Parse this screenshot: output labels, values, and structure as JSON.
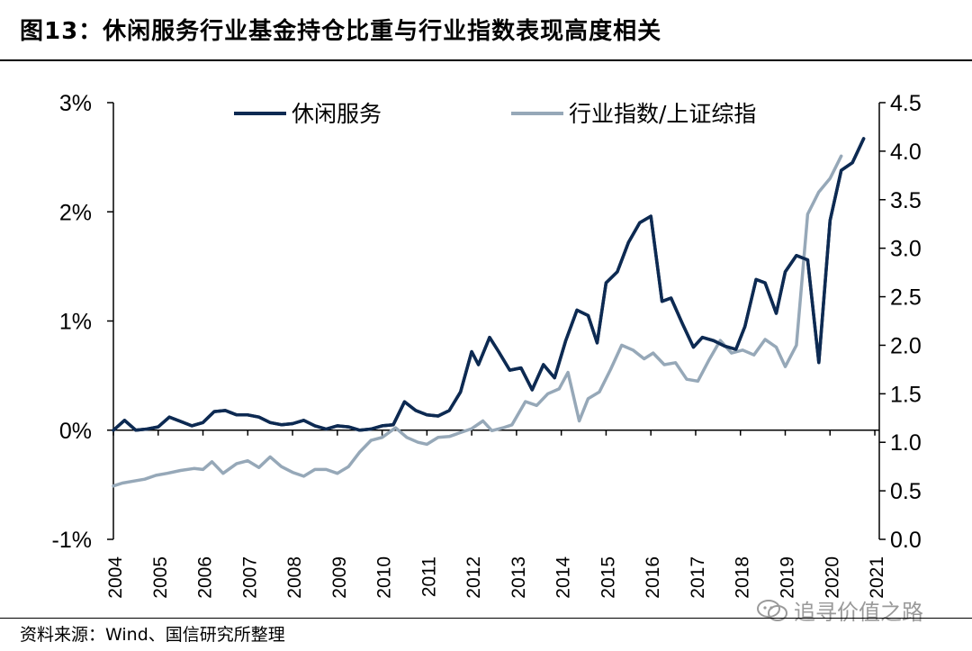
{
  "header": {
    "title": "图13：休闲服务行业基金持仓比重与行业指数表现高度相关"
  },
  "footer": {
    "source": "资料来源：Wind、国信研究所整理"
  },
  "watermark": {
    "text": "追寻价值之路",
    "icon": "wechat-icon"
  },
  "chart_data": {
    "type": "line",
    "x_unit": "year",
    "xlim": [
      2004,
      2021.1
    ],
    "xticks": [
      "2004",
      "2005",
      "2006",
      "2007",
      "2008",
      "2009",
      "2010",
      "2011",
      "2012",
      "2013",
      "2014",
      "2015",
      "2016",
      "2017",
      "2018",
      "2019",
      "2020",
      "2021"
    ],
    "y_left": {
      "ylim": [
        -1,
        3
      ],
      "ticks": [
        "-1%",
        "0%",
        "1%",
        "2%",
        "3%"
      ]
    },
    "y_right": {
      "ylim": [
        0,
        4.5
      ],
      "ticks": [
        "0.0",
        "0.5",
        "1.0",
        "1.5",
        "2.0",
        "2.5",
        "3.0",
        "3.5",
        "4.0",
        "4.5"
      ]
    },
    "grid": false,
    "legend": "top",
    "series": [
      {
        "name": "休闲服务",
        "axis": "left",
        "color": "#0d2a52",
        "points": [
          [
            2004.0,
            0.0
          ],
          [
            2004.25,
            0.09
          ],
          [
            2004.5,
            0.0
          ],
          [
            2004.75,
            0.01
          ],
          [
            2005.0,
            0.03
          ],
          [
            2005.25,
            0.12
          ],
          [
            2005.5,
            0.08
          ],
          [
            2005.75,
            0.04
          ],
          [
            2006.0,
            0.07
          ],
          [
            2006.25,
            0.17
          ],
          [
            2006.5,
            0.18
          ],
          [
            2006.75,
            0.14
          ],
          [
            2007.0,
            0.14
          ],
          [
            2007.25,
            0.12
          ],
          [
            2007.5,
            0.07
          ],
          [
            2007.75,
            0.05
          ],
          [
            2008.0,
            0.06
          ],
          [
            2008.25,
            0.09
          ],
          [
            2008.5,
            0.04
          ],
          [
            2008.75,
            0.01
          ],
          [
            2009.0,
            0.04
          ],
          [
            2009.25,
            0.03
          ],
          [
            2009.5,
            0.0
          ],
          [
            2009.75,
            0.01
          ],
          [
            2010.0,
            0.04
          ],
          [
            2010.25,
            0.05
          ],
          [
            2010.5,
            0.26
          ],
          [
            2010.75,
            0.18
          ],
          [
            2011.0,
            0.14
          ],
          [
            2011.25,
            0.13
          ],
          [
            2011.5,
            0.18
          ],
          [
            2011.75,
            0.35
          ],
          [
            2012.0,
            0.72
          ],
          [
            2012.15,
            0.6
          ],
          [
            2012.4,
            0.85
          ],
          [
            2012.6,
            0.72
          ],
          [
            2012.85,
            0.55
          ],
          [
            2013.1,
            0.57
          ],
          [
            2013.35,
            0.37
          ],
          [
            2013.6,
            0.6
          ],
          [
            2013.85,
            0.48
          ],
          [
            2014.1,
            0.82
          ],
          [
            2014.35,
            1.1
          ],
          [
            2014.6,
            1.05
          ],
          [
            2014.8,
            0.8
          ],
          [
            2015.0,
            1.35
          ],
          [
            2015.25,
            1.45
          ],
          [
            2015.5,
            1.72
          ],
          [
            2015.75,
            1.9
          ],
          [
            2016.0,
            1.96
          ],
          [
            2016.25,
            1.18
          ],
          [
            2016.45,
            1.21
          ],
          [
            2016.7,
            0.98
          ],
          [
            2016.95,
            0.76
          ],
          [
            2017.15,
            0.85
          ],
          [
            2017.4,
            0.82
          ],
          [
            2017.65,
            0.77
          ],
          [
            2017.9,
            0.74
          ],
          [
            2018.1,
            0.95
          ],
          [
            2018.35,
            1.38
          ],
          [
            2018.55,
            1.35
          ],
          [
            2018.8,
            1.07
          ],
          [
            2019.0,
            1.45
          ],
          [
            2019.25,
            1.6
          ],
          [
            2019.5,
            1.56
          ],
          [
            2019.75,
            0.62
          ],
          [
            2020.0,
            1.92
          ],
          [
            2020.25,
            2.38
          ],
          [
            2020.5,
            2.45
          ],
          [
            2020.75,
            2.67
          ]
        ]
      },
      {
        "name": "行业指数/上证综指",
        "axis": "right",
        "color": "#96a8b8",
        "points": [
          [
            2004.0,
            0.55
          ],
          [
            2004.2,
            0.58
          ],
          [
            2004.45,
            0.6
          ],
          [
            2004.7,
            0.62
          ],
          [
            2004.95,
            0.66
          ],
          [
            2005.2,
            0.68
          ],
          [
            2005.5,
            0.71
          ],
          [
            2005.8,
            0.73
          ],
          [
            2006.0,
            0.72
          ],
          [
            2006.2,
            0.8
          ],
          [
            2006.45,
            0.68
          ],
          [
            2006.75,
            0.78
          ],
          [
            2007.0,
            0.81
          ],
          [
            2007.25,
            0.74
          ],
          [
            2007.5,
            0.85
          ],
          [
            2007.75,
            0.75
          ],
          [
            2008.0,
            0.69
          ],
          [
            2008.25,
            0.65
          ],
          [
            2008.5,
            0.72
          ],
          [
            2008.75,
            0.72
          ],
          [
            2009.0,
            0.68
          ],
          [
            2009.25,
            0.75
          ],
          [
            2009.5,
            0.9
          ],
          [
            2009.75,
            1.02
          ],
          [
            2010.0,
            1.05
          ],
          [
            2010.3,
            1.15
          ],
          [
            2010.55,
            1.05
          ],
          [
            2010.8,
            1.0
          ],
          [
            2011.0,
            0.98
          ],
          [
            2011.25,
            1.05
          ],
          [
            2011.5,
            1.06
          ],
          [
            2011.75,
            1.1
          ],
          [
            2012.0,
            1.14
          ],
          [
            2012.25,
            1.22
          ],
          [
            2012.45,
            1.12
          ],
          [
            2012.7,
            1.15
          ],
          [
            2012.9,
            1.18
          ],
          [
            2013.2,
            1.42
          ],
          [
            2013.45,
            1.38
          ],
          [
            2013.7,
            1.5
          ],
          [
            2013.95,
            1.55
          ],
          [
            2014.15,
            1.72
          ],
          [
            2014.4,
            1.22
          ],
          [
            2014.6,
            1.45
          ],
          [
            2014.85,
            1.52
          ],
          [
            2015.1,
            1.75
          ],
          [
            2015.35,
            2.0
          ],
          [
            2015.6,
            1.95
          ],
          [
            2015.85,
            1.86
          ],
          [
            2016.05,
            1.92
          ],
          [
            2016.3,
            1.8
          ],
          [
            2016.55,
            1.82
          ],
          [
            2016.8,
            1.65
          ],
          [
            2017.05,
            1.63
          ],
          [
            2017.3,
            1.85
          ],
          [
            2017.55,
            2.05
          ],
          [
            2017.8,
            1.92
          ],
          [
            2018.05,
            1.95
          ],
          [
            2018.3,
            1.9
          ],
          [
            2018.55,
            2.06
          ],
          [
            2018.8,
            1.98
          ],
          [
            2019.0,
            1.78
          ],
          [
            2019.25,
            2.0
          ],
          [
            2019.5,
            3.35
          ],
          [
            2019.75,
            3.58
          ],
          [
            2020.0,
            3.72
          ],
          [
            2020.25,
            3.95
          ]
        ]
      }
    ]
  }
}
